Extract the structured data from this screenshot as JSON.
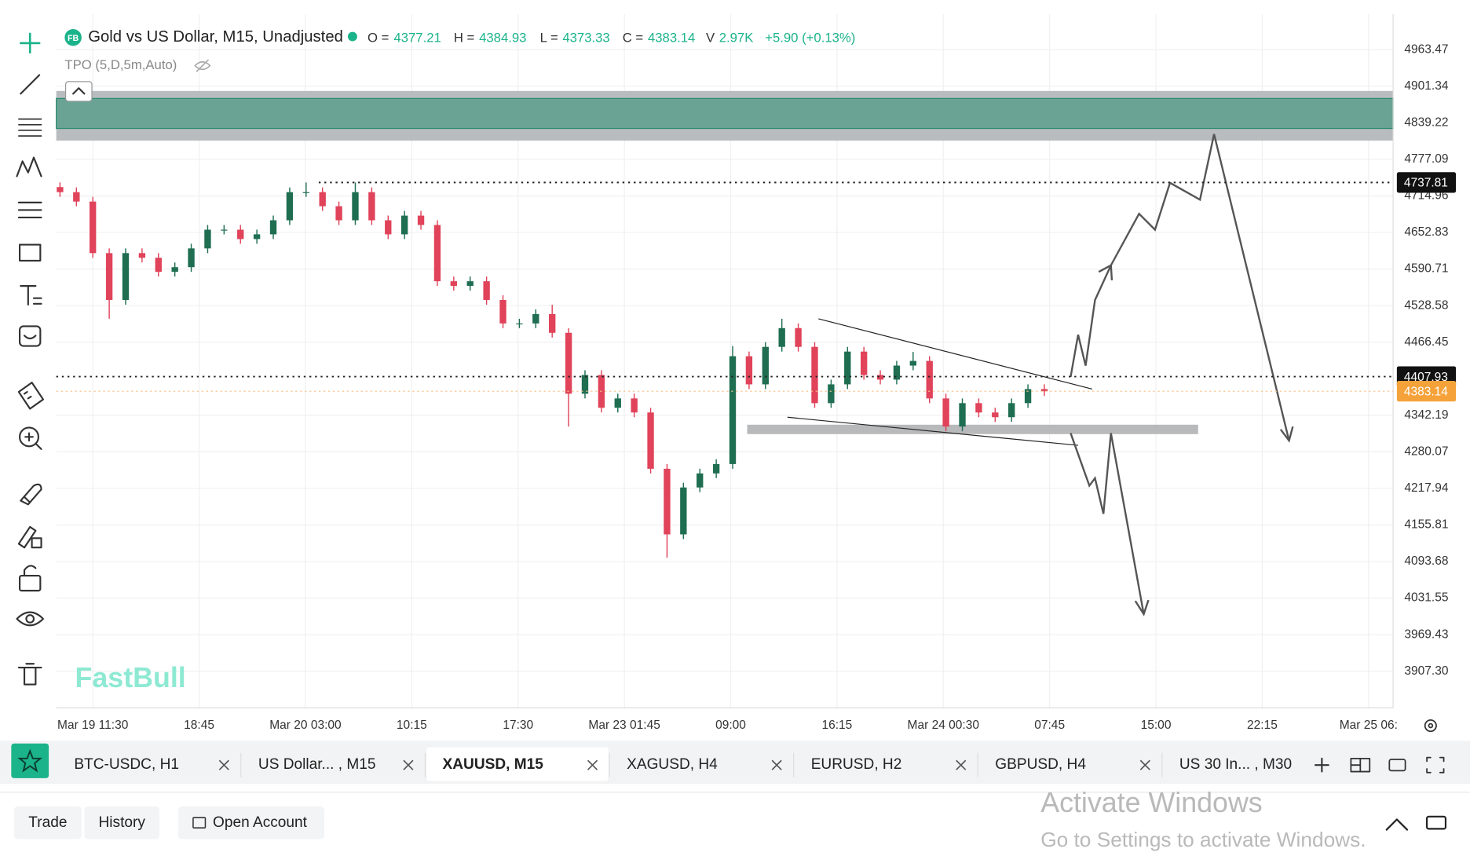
{
  "header": {
    "badge": "FB",
    "title": "Gold vs US Dollar, M15, Unadjusted",
    "ohlc": [
      {
        "label": "O =",
        "value": "4377.21"
      },
      {
        "label": "H =",
        "value": "4384.93"
      },
      {
        "label": "L =",
        "value": "4373.33"
      },
      {
        "label": "C =",
        "value": "4383.14"
      },
      {
        "label": "V",
        "value": "2.97K"
      }
    ],
    "change": "+5.90 (+0.13%)",
    "indicator": "TPO (5,D,5m,Auto)"
  },
  "chart_data": {
    "type": "candlestick",
    "up_color": "#1f6e52",
    "down_color": "#e0435a",
    "open": [
      4730.0,
      4721.4,
      4705.4,
      4617.8,
      4538.2,
      4617.8,
      4609.9,
      4586.0,
      4593.9,
      4625.8,
      4657.6,
      4657.6,
      4641.7,
      4649.7,
      4673.6,
      4721.4,
      4721.4,
      4697.5,
      4673.6,
      4721.4,
      4673.6,
      4649.7,
      4681.5,
      4665.6,
      4570.0,
      4562.1,
      4570.0,
      4538.2,
      4498.3,
      4498.3,
      4514.3,
      4482.4,
      4378.9,
      4410.7,
      4355.0,
      4370.9,
      4347.0,
      4251.4,
      4139.9,
      4219.6,
      4243.5,
      4259.4,
      4442.6,
      4394.8,
      4458.5,
      4490.4,
      4458.5,
      4362.9,
      4394.8,
      4450.5,
      4410.7,
      4402.8,
      4426.7,
      4434.6,
      4370.9,
      4323.1,
      4362.9,
      4347.0,
      4339.0,
      4362.9,
      4386.8
    ],
    "high": [
      4738.0,
      4729.4,
      4713.4,
      4625.8,
      4625.8,
      4625.8,
      4617.9,
      4601.9,
      4633.8,
      4665.6,
      4665.6,
      4665.6,
      4657.7,
      4681.6,
      4729.4,
      4737.8,
      4729.4,
      4705.5,
      4737.8,
      4729.4,
      4681.6,
      4689.5,
      4689.5,
      4673.6,
      4578.0,
      4578.0,
      4578.0,
      4546.2,
      4506.3,
      4522.3,
      4530.0,
      4490.4,
      4418.7,
      4418.7,
      4378.9,
      4378.9,
      4355.0,
      4259.4,
      4227.6,
      4251.5,
      4267.4,
      4460.0,
      4450.6,
      4466.5,
      4506.3,
      4498.4,
      4466.5,
      4402.8,
      4458.5,
      4458.5,
      4418.7,
      4434.7,
      4450.0,
      4442.6,
      4378.9,
      4370.9,
      4370.9,
      4355.0,
      4370.9,
      4394.8,
      4394.8
    ],
    "low": [
      4713.4,
      4697.4,
      4609.8,
      4506.3,
      4530.2,
      4601.9,
      4578.0,
      4578.0,
      4585.9,
      4617.8,
      4649.6,
      4633.7,
      4633.7,
      4641.7,
      4665.6,
      4713.4,
      4689.5,
      4665.6,
      4665.6,
      4665.6,
      4641.7,
      4641.7,
      4657.6,
      4562.0,
      4554.1,
      4554.1,
      4530.2,
      4490.3,
      4490.3,
      4490.3,
      4474.4,
      4323.1,
      4370.9,
      4347.0,
      4347.0,
      4339.0,
      4243.4,
      4100.1,
      4131.9,
      4211.6,
      4235.5,
      4251.4,
      4386.8,
      4386.8,
      4450.5,
      4450.5,
      4354.9,
      4354.9,
      4386.8,
      4402.7,
      4394.8,
      4394.8,
      4418.7,
      4362.9,
      4315.1,
      4315.1,
      4339.0,
      4331.0,
      4331.0,
      4354.9,
      4375.1
    ],
    "close": [
      4721.4,
      4705.4,
      4617.8,
      4538.2,
      4617.8,
      4609.9,
      4586.0,
      4593.9,
      4625.8,
      4657.6,
      4657.6,
      4641.7,
      4649.7,
      4673.6,
      4721.4,
      4721.4,
      4697.5,
      4673.6,
      4721.4,
      4673.6,
      4649.7,
      4681.5,
      4665.6,
      4570.0,
      4562.1,
      4570.0,
      4538.2,
      4498.3,
      4498.3,
      4514.3,
      4482.4,
      4378.9,
      4410.7,
      4355.0,
      4370.9,
      4347.0,
      4251.4,
      4139.9,
      4219.6,
      4243.5,
      4259.4,
      4442.6,
      4394.8,
      4458.5,
      4490.4,
      4458.5,
      4362.9,
      4394.8,
      4450.5,
      4410.7,
      4402.8,
      4426.7,
      4434.6,
      4370.9,
      4323.1,
      4362.9,
      4347.0,
      4339.0,
      4362.9,
      4386.8,
      4383.14
    ],
    "ylim": [
      3845.1,
      5024.0
    ],
    "yticks": [
      4963.47,
      4901.34,
      4839.22,
      4777.09,
      4714.96,
      4652.83,
      4590.71,
      4528.58,
      4466.45,
      4342.19,
      4280.07,
      4217.94,
      4155.81,
      4093.68,
      4031.55,
      3969.43,
      {
        "value": 3907.3,
        "label": "3907.30"
      }
    ],
    "x_labels": [
      "Mar 19 11:30",
      "18:45",
      "Mar 20 03:00",
      "10:15",
      "17:30",
      "Mar 23 01:45",
      "09:00",
      "16:15",
      "Mar 24 00:30",
      "07:45",
      "15:00",
      "22:15",
      "Mar 25 06:"
    ],
    "price_tags": [
      {
        "value": 4737.81,
        "color": "#111111"
      },
      {
        "value": 4407.93,
        "color": "#111111"
      },
      {
        "value": 4383.14,
        "color": "#f5a23a"
      }
    ],
    "grid": true
  },
  "watermark": "FastBull",
  "tabs": [
    "BTC-USDC, H1",
    "US Dollar... , M15",
    "XAUUSD, M15",
    "XAGUSD, H4",
    "EURUSD, H2",
    "GBPUSD, H4",
    "US 30 In... , M30"
  ],
  "active_tab": 2,
  "footer": {
    "buttons": [
      "Trade",
      "History",
      "Open Account"
    ],
    "activation_title": "Activate Windows",
    "activation_subtitle": "Go to Settings to activate Windows."
  }
}
